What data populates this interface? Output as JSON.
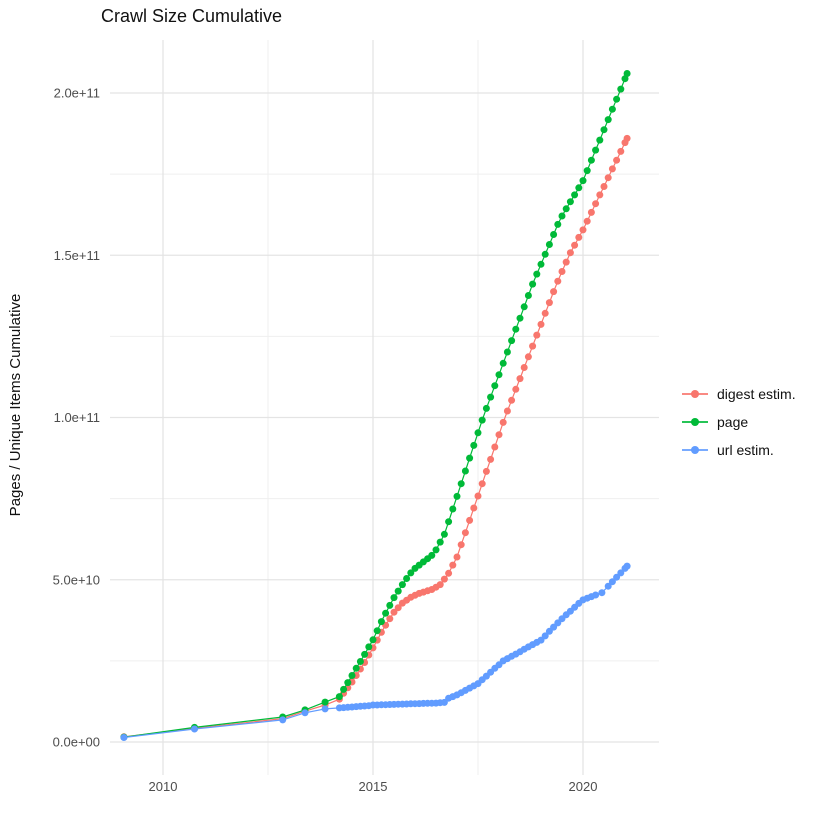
{
  "title": "Crawl Size Cumulative",
  "y_axis": {
    "title": "Pages / Unique Items Cumulative",
    "ticks": [
      {
        "v": 0,
        "label": "0.0e+00"
      },
      {
        "v": 50,
        "label": "5.0e+10"
      },
      {
        "v": 100,
        "label": "1.0e+11"
      },
      {
        "v": 150,
        "label": "1.5e+11"
      },
      {
        "v": 200,
        "label": "2.0e+11"
      }
    ]
  },
  "x_axis": {
    "ticks": [
      {
        "v": 2010,
        "label": "2010"
      },
      {
        "v": 2015,
        "label": "2015"
      },
      {
        "v": 2020,
        "label": "2020"
      }
    ]
  },
  "legend": {
    "items": [
      {
        "label": "digest estim.",
        "color": "#F8766D"
      },
      {
        "label": "page",
        "color": "#00BA38"
      },
      {
        "label": "url estim.",
        "color": "#619CFF"
      }
    ]
  },
  "colors": {
    "grid_major": "#E4E4E4",
    "grid_minor": "#EFEFEF",
    "axis_text": "#4D4D4D",
    "digest": "#F8766D",
    "page": "#00BA38",
    "url": "#619CFF"
  },
  "chart_data": {
    "type": "scatter",
    "title": "Crawl Size Cumulative",
    "xlabel": "",
    "ylabel": "Pages / Unique Items Cumulative",
    "value_unit": "1e9 pages (y tick labels shown in scientific notation)",
    "xlim": [
      2008.5,
      2021.6
    ],
    "ylim": [
      -10,
      216
    ],
    "grid": true,
    "legend_position": "right",
    "marker": "point-with-line",
    "series": [
      {
        "name": "digest estim.",
        "color": "#F8766D",
        "points": [
          [
            2009.07,
            1.6
          ],
          [
            2010.75,
            4.2
          ],
          [
            2012.85,
            7.2
          ],
          [
            2013.38,
            9.5
          ],
          [
            2013.86,
            11.4
          ],
          [
            2014.2,
            13.2
          ],
          [
            2014.3,
            15
          ],
          [
            2014.4,
            16.7
          ],
          [
            2014.5,
            18.5
          ],
          [
            2014.6,
            20.5
          ],
          [
            2014.7,
            22.5
          ],
          [
            2014.8,
            24.5
          ],
          [
            2014.9,
            26.8
          ],
          [
            2015,
            29
          ],
          [
            2015.1,
            31.4
          ],
          [
            2015.2,
            33.8
          ],
          [
            2015.3,
            36
          ],
          [
            2015.4,
            38
          ],
          [
            2015.5,
            40
          ],
          [
            2015.6,
            41.4
          ],
          [
            2015.7,
            42.8
          ],
          [
            2015.8,
            43.7
          ],
          [
            2015.9,
            44.6
          ],
          [
            2016,
            45.2
          ],
          [
            2016.1,
            45.8
          ],
          [
            2016.2,
            46.2
          ],
          [
            2016.3,
            46.6
          ],
          [
            2016.4,
            47
          ],
          [
            2016.5,
            47.7
          ],
          [
            2016.6,
            48.5
          ],
          [
            2016.7,
            50.2
          ],
          [
            2016.8,
            52
          ],
          [
            2016.9,
            54.5
          ],
          [
            2017,
            57
          ],
          [
            2017.1,
            60.8
          ],
          [
            2017.2,
            64.5
          ],
          [
            2017.3,
            68.3
          ],
          [
            2017.4,
            72.1
          ],
          [
            2017.5,
            75.8
          ],
          [
            2017.6,
            79.6
          ],
          [
            2017.7,
            83.4
          ],
          [
            2017.8,
            87.1
          ],
          [
            2017.9,
            90.9
          ],
          [
            2018,
            94.7
          ],
          [
            2018.1,
            98.5
          ],
          [
            2018.2,
            102
          ],
          [
            2018.3,
            105.3
          ],
          [
            2018.4,
            108.7
          ],
          [
            2018.5,
            112
          ],
          [
            2018.6,
            115.4
          ],
          [
            2018.7,
            118.7
          ],
          [
            2018.8,
            122
          ],
          [
            2018.9,
            125.4
          ],
          [
            2019,
            128.7
          ],
          [
            2019.1,
            132.1
          ],
          [
            2019.2,
            135.4
          ],
          [
            2019.3,
            138.8
          ],
          [
            2019.4,
            142
          ],
          [
            2019.5,
            145
          ],
          [
            2019.6,
            147.9
          ],
          [
            2019.7,
            150.8
          ],
          [
            2019.8,
            153.1
          ],
          [
            2019.9,
            155.5
          ],
          [
            2020,
            157.8
          ],
          [
            2020.1,
            160.5
          ],
          [
            2020.2,
            163.2
          ],
          [
            2020.3,
            165.9
          ],
          [
            2020.4,
            168.6
          ],
          [
            2020.5,
            171.2
          ],
          [
            2020.6,
            173.9
          ],
          [
            2020.7,
            176.6
          ],
          [
            2020.8,
            179.3
          ],
          [
            2020.9,
            182
          ],
          [
            2021,
            184.7
          ],
          [
            2021.05,
            186
          ]
        ]
      },
      {
        "name": "page",
        "color": "#00BA38",
        "points": [
          [
            2009.07,
            1.5
          ],
          [
            2010.75,
            4.5
          ],
          [
            2012.85,
            7.7
          ],
          [
            2013.38,
            9.9
          ],
          [
            2013.86,
            12.3
          ],
          [
            2014.2,
            14
          ],
          [
            2014.3,
            16.2
          ],
          [
            2014.4,
            18.3
          ],
          [
            2014.5,
            20.5
          ],
          [
            2014.6,
            22.7
          ],
          [
            2014.7,
            24.8
          ],
          [
            2014.8,
            27
          ],
          [
            2014.9,
            29.3
          ],
          [
            2015,
            31.5
          ],
          [
            2015.1,
            34.3
          ],
          [
            2015.2,
            37.1
          ],
          [
            2015.3,
            39.7
          ],
          [
            2015.4,
            42.1
          ],
          [
            2015.5,
            44.5
          ],
          [
            2015.6,
            46.5
          ],
          [
            2015.7,
            48.5
          ],
          [
            2015.8,
            50.4
          ],
          [
            2015.9,
            52.1
          ],
          [
            2016,
            53.5
          ],
          [
            2016.1,
            54.5
          ],
          [
            2016.2,
            55.5
          ],
          [
            2016.3,
            56.5
          ],
          [
            2016.4,
            57.5
          ],
          [
            2016.5,
            59.2
          ],
          [
            2016.6,
            61.6
          ],
          [
            2016.7,
            64
          ],
          [
            2016.8,
            67.9
          ],
          [
            2016.9,
            71.8
          ],
          [
            2017,
            75.7
          ],
          [
            2017.1,
            79.6
          ],
          [
            2017.2,
            83.5
          ],
          [
            2017.3,
            87.5
          ],
          [
            2017.4,
            91.4
          ],
          [
            2017.5,
            95.3
          ],
          [
            2017.6,
            99.2
          ],
          [
            2017.7,
            102.8
          ],
          [
            2017.8,
            106.3
          ],
          [
            2017.9,
            109.8
          ],
          [
            2018,
            113.2
          ],
          [
            2018.1,
            116.7
          ],
          [
            2018.2,
            120.2
          ],
          [
            2018.3,
            123.7
          ],
          [
            2018.4,
            127.2
          ],
          [
            2018.5,
            130.6
          ],
          [
            2018.6,
            134.1
          ],
          [
            2018.7,
            137.6
          ],
          [
            2018.8,
            141.1
          ],
          [
            2018.9,
            144.2
          ],
          [
            2019,
            147.2
          ],
          [
            2019.1,
            150.3
          ],
          [
            2019.2,
            153.3
          ],
          [
            2019.3,
            156.4
          ],
          [
            2019.4,
            159.5
          ],
          [
            2019.5,
            162.1
          ],
          [
            2019.6,
            164.3
          ],
          [
            2019.7,
            166.5
          ],
          [
            2019.8,
            168.6
          ],
          [
            2019.9,
            170.8
          ],
          [
            2020,
            173
          ],
          [
            2020.1,
            176.1
          ],
          [
            2020.2,
            179.3
          ],
          [
            2020.3,
            182.4
          ],
          [
            2020.4,
            185.5
          ],
          [
            2020.5,
            188.7
          ],
          [
            2020.6,
            191.8
          ],
          [
            2020.7,
            195
          ],
          [
            2020.8,
            198.1
          ],
          [
            2020.9,
            201.2
          ],
          [
            2021,
            204.4
          ],
          [
            2021.05,
            206
          ]
        ]
      },
      {
        "name": "url estim.",
        "color": "#619CFF",
        "points": [
          [
            2009.07,
            1.4
          ],
          [
            2010.75,
            4
          ],
          [
            2012.85,
            6.8
          ],
          [
            2013.38,
            9
          ],
          [
            2013.86,
            10.2
          ],
          [
            2014.2,
            10.5
          ],
          [
            2014.3,
            10.6
          ],
          [
            2014.4,
            10.7
          ],
          [
            2014.5,
            10.8
          ],
          [
            2014.6,
            10.9
          ],
          [
            2014.7,
            11
          ],
          [
            2014.8,
            11.1
          ],
          [
            2014.9,
            11.2
          ],
          [
            2015,
            11.4
          ],
          [
            2015.1,
            11.4
          ],
          [
            2015.2,
            11.45
          ],
          [
            2015.3,
            11.5
          ],
          [
            2015.4,
            11.55
          ],
          [
            2015.5,
            11.6
          ],
          [
            2015.6,
            11.64
          ],
          [
            2015.7,
            11.68
          ],
          [
            2015.8,
            11.72
          ],
          [
            2015.9,
            11.76
          ],
          [
            2016,
            11.8
          ],
          [
            2016.1,
            11.84
          ],
          [
            2016.2,
            11.88
          ],
          [
            2016.3,
            11.92
          ],
          [
            2016.4,
            11.96
          ],
          [
            2016.5,
            12
          ],
          [
            2016.6,
            12.1
          ],
          [
            2016.7,
            12.2
          ],
          [
            2016.8,
            13.5
          ],
          [
            2016.9,
            14
          ],
          [
            2017,
            14.5
          ],
          [
            2017.1,
            15.2
          ],
          [
            2017.2,
            15.9
          ],
          [
            2017.3,
            16.6
          ],
          [
            2017.4,
            17.3
          ],
          [
            2017.5,
            18
          ],
          [
            2017.6,
            19.2
          ],
          [
            2017.7,
            20.3
          ],
          [
            2017.8,
            21.5
          ],
          [
            2017.9,
            22.7
          ],
          [
            2018,
            23.8
          ],
          [
            2018.1,
            25
          ],
          [
            2018.2,
            25.7
          ],
          [
            2018.3,
            26.4
          ],
          [
            2018.4,
            27.1
          ],
          [
            2018.5,
            27.8
          ],
          [
            2018.6,
            28.6
          ],
          [
            2018.7,
            29.3
          ],
          [
            2018.8,
            30
          ],
          [
            2018.9,
            30.7
          ],
          [
            2019,
            31.4
          ],
          [
            2019.1,
            32.7
          ],
          [
            2019.2,
            34.1
          ],
          [
            2019.3,
            35.4
          ],
          [
            2019.4,
            36.7
          ],
          [
            2019.5,
            38
          ],
          [
            2019.6,
            39.2
          ],
          [
            2019.7,
            40.3
          ],
          [
            2019.8,
            41.5
          ],
          [
            2019.9,
            42.7
          ],
          [
            2020,
            43.8
          ],
          [
            2020.1,
            44.3
          ],
          [
            2020.2,
            44.8
          ],
          [
            2020.3,
            45.3
          ],
          [
            2020.45,
            46
          ],
          [
            2020.6,
            48
          ],
          [
            2020.7,
            49.4
          ],
          [
            2020.8,
            50.8
          ],
          [
            2020.9,
            52.1
          ],
          [
            2021,
            53.5
          ],
          [
            2021.05,
            54.2
          ]
        ]
      }
    ]
  }
}
